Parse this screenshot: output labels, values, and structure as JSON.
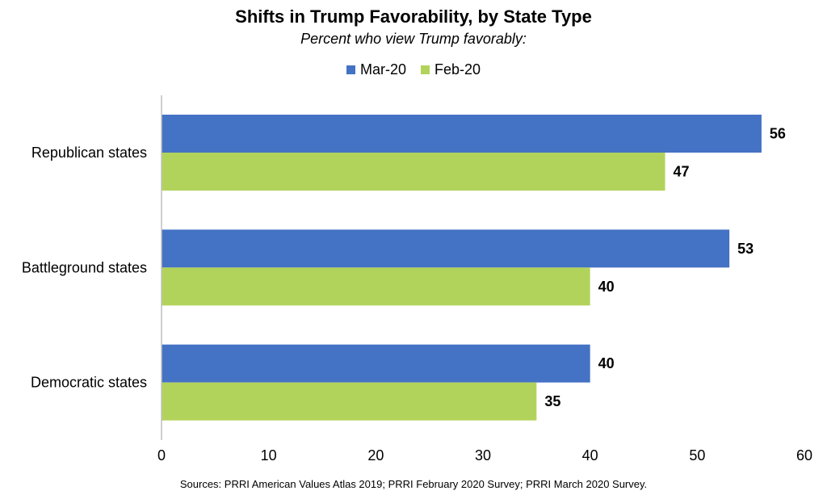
{
  "chart_data": {
    "type": "bar",
    "orientation": "horizontal",
    "title": "Shifts in Trump Favorability, by State Type",
    "subtitle": "Percent who view Trump favorably:",
    "categories": [
      "Republican states",
      "Battleground states",
      "Democratic states"
    ],
    "series": [
      {
        "name": "Mar-20",
        "color": "#4472C4",
        "values": [
          56,
          53,
          40
        ]
      },
      {
        "name": "Feb-20",
        "color": "#B2D35B",
        "values": [
          47,
          40,
          35
        ]
      }
    ],
    "xlim": [
      0,
      60
    ],
    "xticks": [
      "0",
      "10",
      "20",
      "30",
      "40",
      "50",
      "60"
    ],
    "grid": false,
    "legend_position": "top",
    "source": "Sources: PRRI American Values Atlas 2019; PRRI February 2020 Survey; PRRI March 2020 Survey."
  }
}
